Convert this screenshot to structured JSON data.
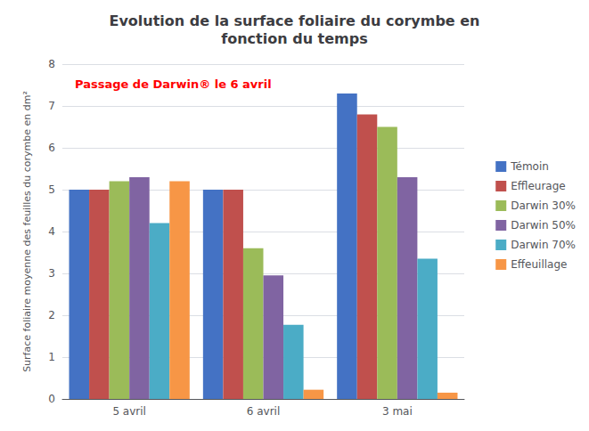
{
  "chart_data": {
    "type": "bar",
    "title": "Evolution de la surface foliaire du corymbe en\nfonction du temps",
    "ylabel": "Surface foliaire moyenne des feuilles du corymbe en dm²",
    "annotation": {
      "text": "Passage de Darwin® le 6 avril",
      "color": "#FF0000"
    },
    "categories": [
      "5 avril",
      "6 avril",
      "3 mai"
    ],
    "series": [
      {
        "name": "Témoin",
        "color": "#4472C4",
        "values": [
          5.0,
          5.0,
          7.3
        ]
      },
      {
        "name": "Effleurage",
        "color": "#C0504D",
        "values": [
          5.0,
          5.0,
          6.8
        ]
      },
      {
        "name": "Darwin 30%",
        "color": "#9BBB59",
        "values": [
          5.2,
          3.6,
          6.5
        ]
      },
      {
        "name": "Darwin 50%",
        "color": "#8064A2",
        "values": [
          5.3,
          2.95,
          5.3
        ]
      },
      {
        "name": "Darwin 70%",
        "color": "#4BACC6",
        "values": [
          4.2,
          1.77,
          3.35
        ]
      },
      {
        "name": "Effeuillage",
        "color": "#F79646",
        "values": [
          5.2,
          0.22,
          0.15
        ]
      }
    ],
    "ylim": [
      0,
      8
    ],
    "yticks": [
      0,
      1,
      2,
      3,
      4,
      5,
      6,
      7,
      8
    ],
    "grid": true,
    "legend": "right"
  }
}
